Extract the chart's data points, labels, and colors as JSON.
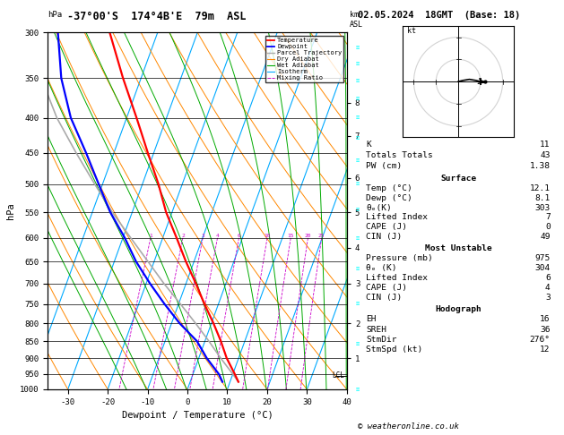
{
  "title_left": "-37°00'S  174°4B'E  79m  ASL",
  "title_right": "02.05.2024  18GMT  (Base: 18)",
  "xlabel": "Dewpoint / Temperature (°C)",
  "ylabel_left": "hPa",
  "temp_color": "#ff0000",
  "dewp_color": "#0000ff",
  "parcel_color": "#aaaaaa",
  "dry_adiabat_color": "#ff8800",
  "wet_adiabat_color": "#00aa00",
  "isotherm_color": "#00aaff",
  "mixing_ratio_color": "#cc00cc",
  "background_color": "#ffffff",
  "xlim": [
    -35,
    40
  ],
  "p_min": 300,
  "p_max": 1000,
  "temp_profile_p": [
    975,
    950,
    900,
    850,
    800,
    750,
    700,
    650,
    600,
    550,
    500,
    450,
    400,
    350,
    300
  ],
  "temp_profile_t": [
    12.1,
    10.5,
    7.0,
    4.0,
    0.5,
    -3.5,
    -7.5,
    -12.0,
    -16.5,
    -21.5,
    -26.0,
    -31.5,
    -37.5,
    -44.5,
    -52.0
  ],
  "dewp_profile_p": [
    975,
    950,
    900,
    850,
    800,
    750,
    700,
    650,
    600,
    550,
    500,
    450,
    400,
    350,
    300
  ],
  "dewp_profile_t": [
    8.1,
    6.5,
    2.0,
    -2.0,
    -8.0,
    -13.5,
    -19.0,
    -24.5,
    -29.5,
    -35.5,
    -41.0,
    -47.0,
    -54.0,
    -60.0,
    -65.0
  ],
  "parcel_profile_p": [
    975,
    950,
    900,
    850,
    800,
    750,
    700,
    650,
    600,
    550,
    500,
    450,
    400,
    350,
    300
  ],
  "parcel_profile_t": [
    12.1,
    10.0,
    5.5,
    1.0,
    -4.0,
    -9.5,
    -15.5,
    -21.5,
    -28.0,
    -35.0,
    -42.0,
    -49.5,
    -57.5,
    -65.0,
    -72.0
  ],
  "lcl_pressure": 955,
  "skew_factor": 27,
  "mixing_ratio_values": [
    1,
    2,
    3,
    4,
    6,
    10,
    15,
    20,
    25
  ],
  "km_ticks": [
    1,
    2,
    3,
    4,
    5,
    6,
    7,
    8
  ],
  "km_pressures": [
    900,
    800,
    700,
    620,
    550,
    490,
    425,
    380
  ],
  "info_K": 11,
  "info_TT": 43,
  "info_PW": "1.38",
  "sfc_temp": "12.1",
  "sfc_dewp": "8.1",
  "sfc_theta_e": 303,
  "sfc_li": 7,
  "sfc_cape": 0,
  "sfc_cin": 49,
  "mu_pressure": 975,
  "mu_theta_e": 304,
  "mu_li": 6,
  "mu_cape": 4,
  "mu_cin": 3,
  "hodo_EH": 16,
  "hodo_SREH": 36,
  "hodo_StmDir": "276°",
  "hodo_StmSpd": 12,
  "credit": "© weatheronline.co.uk",
  "pressure_levels": [
    300,
    350,
    400,
    450,
    500,
    550,
    600,
    650,
    700,
    750,
    800,
    850,
    900,
    950,
    1000
  ],
  "isotherm_temps": [
    -40,
    -30,
    -20,
    -10,
    0,
    10,
    20,
    30,
    40
  ],
  "dry_adiabat_thetas": [
    -30,
    -20,
    -10,
    0,
    10,
    20,
    30,
    40,
    50,
    60,
    70,
    80,
    90,
    100,
    110,
    120
  ],
  "wet_adiabat_starts": [
    -15,
    -10,
    -5,
    0,
    5,
    10,
    15,
    20,
    25,
    30,
    35,
    40
  ]
}
